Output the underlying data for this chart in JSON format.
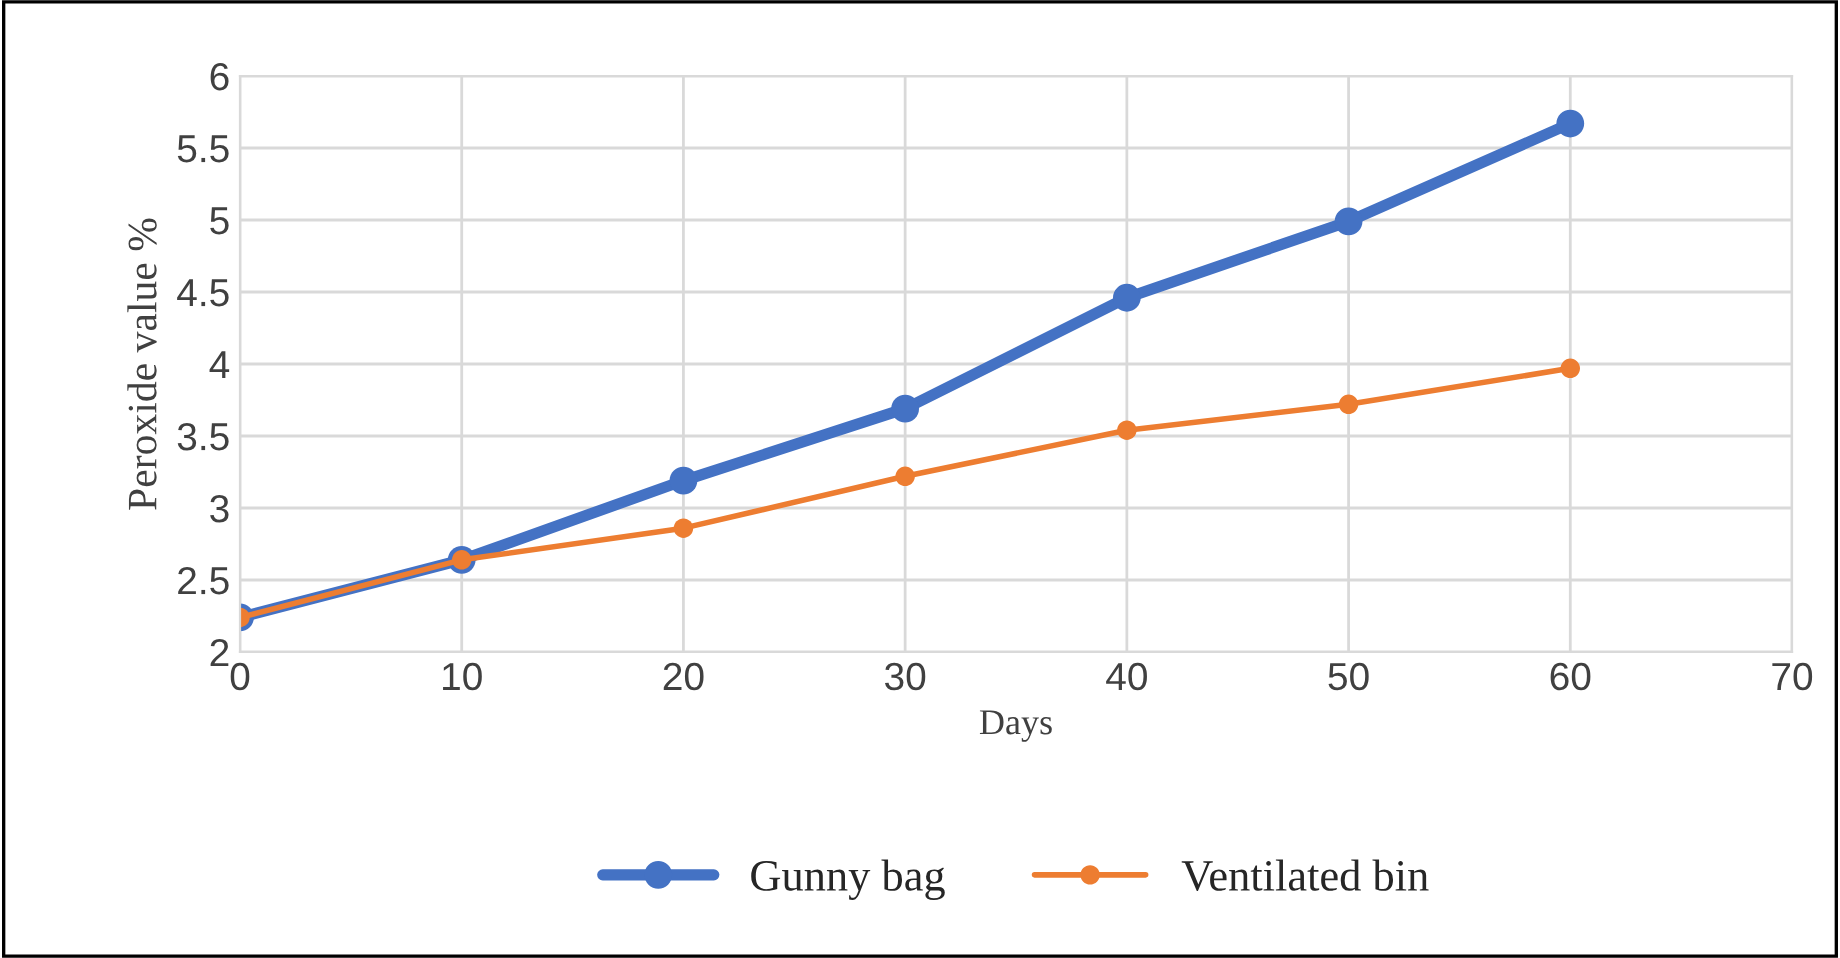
{
  "chart_data": {
    "type": "line",
    "xlabel": "Days",
    "ylabel": "Peroxide value %",
    "x": [
      0,
      10,
      20,
      30,
      40,
      50,
      60
    ],
    "series": [
      {
        "name": "Gunny bag",
        "color": "#4472c4",
        "values": [
          2.24,
          2.64,
          3.19,
          3.69,
          4.46,
          4.99,
          5.67
        ]
      },
      {
        "name": "Ventilated bin",
        "color": "#ed7d31",
        "values": [
          2.24,
          2.64,
          2.86,
          3.22,
          3.54,
          3.72,
          3.97
        ]
      }
    ],
    "xlim": [
      0,
      70
    ],
    "xticks": [
      0,
      10,
      20,
      30,
      40,
      50,
      60,
      70
    ],
    "ylim": [
      2,
      6
    ],
    "yticks": [
      2,
      2.5,
      3,
      3.5,
      4,
      4.5,
      5,
      5.5,
      6
    ],
    "grid": true,
    "legend": "bottom",
    "marker": "circle",
    "line_style": "solid"
  }
}
